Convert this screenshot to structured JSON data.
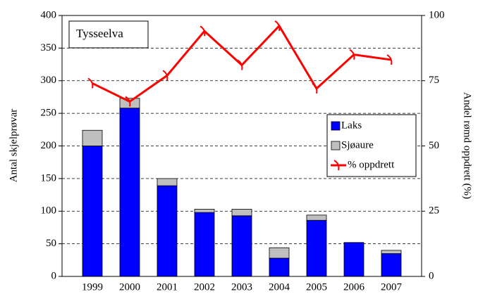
{
  "chart_data": {
    "type": "bar",
    "annotation": "Tysseelva",
    "ylabel": "Antal skjelprøvar",
    "y2label": "Andel rømd oppdrett (%)",
    "categories": [
      "1999",
      "2000",
      "2001",
      "2002",
      "2003",
      "2004",
      "2005",
      "2006",
      "2007"
    ],
    "series": [
      {
        "name": "Laks",
        "color": "#0000ff",
        "values": [
          200,
          258,
          139,
          98,
          93,
          28,
          86,
          52,
          35
        ]
      },
      {
        "name": "Sjøaure",
        "color": "#bfbfbf",
        "values": [
          24,
          15,
          11,
          5,
          10,
          16,
          8,
          0,
          5
        ]
      },
      {
        "name": "% oppdrett",
        "color": "#ff0000",
        "axis": "y2",
        "type": "line",
        "values": [
          74,
          67,
          77,
          94,
          81,
          96,
          72,
          85,
          83
        ]
      }
    ],
    "stacked": true,
    "ylim": [
      0,
      400
    ],
    "yticks": [
      0,
      50,
      100,
      150,
      200,
      250,
      300,
      350,
      400
    ],
    "y2lim": [
      0,
      100
    ],
    "y2ticks": [
      0,
      25,
      50,
      75,
      100
    ],
    "grid": true,
    "legend": "right"
  }
}
